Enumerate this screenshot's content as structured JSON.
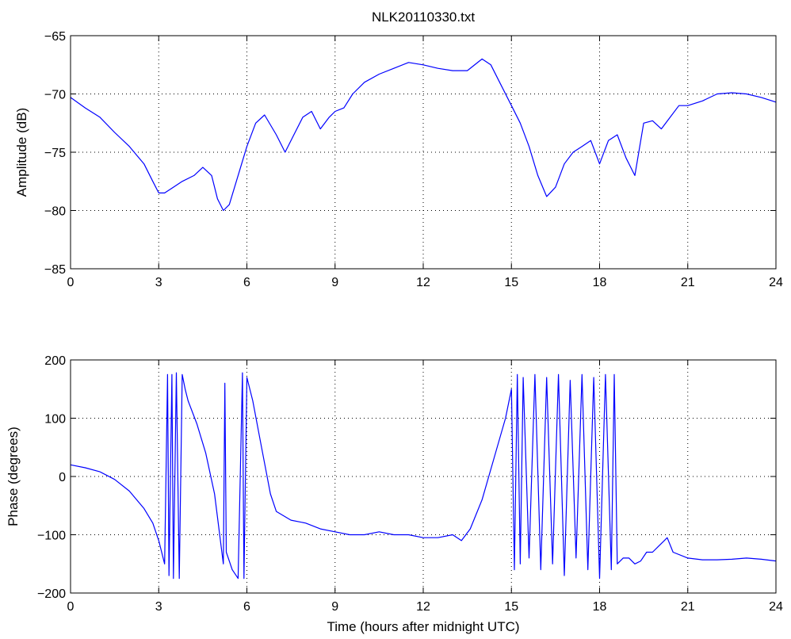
{
  "chart_data": [
    {
      "type": "line",
      "title": "NLK20110330.txt",
      "xlabel": "",
      "ylabel": "Amplitude (dB)",
      "xlim": [
        0,
        24
      ],
      "ylim": [
        -85,
        -65
      ],
      "xticks": [
        0,
        3,
        6,
        9,
        12,
        15,
        18,
        21,
        24
      ],
      "yticks": [
        -85,
        -80,
        -75,
        -70,
        -65
      ],
      "xtick_labels": [
        "0",
        "3",
        "6",
        "9",
        "12",
        "15",
        "18",
        "21",
        "24"
      ],
      "ytick_labels": [
        "−85",
        "−80",
        "−75",
        "−70",
        "−65"
      ],
      "grid": true,
      "color": "#0000ff",
      "series": [
        {
          "x": [
            0,
            0.5,
            1,
            1.5,
            2,
            2.5,
            2.8,
            3.0,
            3.2,
            3.5,
            3.8,
            4.2,
            4.5,
            4.8,
            5.0,
            5.2,
            5.4,
            5.7,
            6.0,
            6.3,
            6.6,
            7.0,
            7.3,
            7.6,
            7.9,
            8.2,
            8.5,
            8.8,
            9.0,
            9.3,
            9.6,
            10.0,
            10.5,
            11.0,
            11.5,
            12.0,
            12.5,
            13.0,
            13.5,
            14.0,
            14.3,
            14.6,
            15.0,
            15.3,
            15.6,
            15.9,
            16.2,
            16.5,
            16.8,
            17.1,
            17.4,
            17.7,
            18.0,
            18.3,
            18.6,
            18.9,
            19.2,
            19.5,
            19.8,
            20.1,
            20.4,
            20.7,
            21.0,
            21.5,
            22.0,
            22.5,
            23.0,
            23.5,
            24.0
          ],
          "y": [
            -70.3,
            -71.2,
            -72.0,
            -73.3,
            -74.5,
            -76.0,
            -77.5,
            -78.5,
            -78.5,
            -78.0,
            -77.5,
            -77.0,
            -76.3,
            -77.0,
            -79.0,
            -80.0,
            -79.5,
            -77.0,
            -74.5,
            -72.5,
            -71.8,
            -73.5,
            -75.0,
            -73.5,
            -72.0,
            -71.5,
            -73.0,
            -72.0,
            -71.5,
            -71.2,
            -70.0,
            -69.0,
            -68.3,
            -67.8,
            -67.3,
            -67.5,
            -67.8,
            -68.0,
            -68.0,
            -67.0,
            -67.5,
            -69.0,
            -71.0,
            -72.5,
            -74.5,
            -77.0,
            -78.8,
            -78.0,
            -76.0,
            -75.0,
            -74.5,
            -74.0,
            -76.0,
            -74.0,
            -73.5,
            -75.5,
            -77.0,
            -72.5,
            -72.3,
            -73.0,
            -72.0,
            -71.0,
            -71.0,
            -70.6,
            -70.0,
            -69.9,
            -70.0,
            -70.3,
            -70.7
          ]
        }
      ]
    },
    {
      "type": "line",
      "title": "",
      "xlabel": "Time (hours after midnight UTC)",
      "ylabel": "Phase (degrees)",
      "xlim": [
        0,
        24
      ],
      "ylim": [
        -200,
        200
      ],
      "xticks": [
        0,
        3,
        6,
        9,
        12,
        15,
        18,
        21,
        24
      ],
      "yticks": [
        -200,
        -100,
        0,
        100,
        200
      ],
      "xtick_labels": [
        "0",
        "3",
        "6",
        "9",
        "12",
        "15",
        "18",
        "21",
        "24"
      ],
      "ytick_labels": [
        "−200",
        "−100",
        "0",
        "100",
        "200"
      ],
      "grid": true,
      "color": "#0000ff",
      "series": [
        {
          "x": [
            0,
            0.5,
            1,
            1.5,
            2,
            2.5,
            2.8,
            3.0,
            3.2,
            3.3,
            3.35,
            3.45,
            3.5,
            3.6,
            3.7,
            3.8,
            3.9,
            4.0,
            4.3,
            4.6,
            4.9,
            5.2,
            5.25,
            5.3,
            5.5,
            5.7,
            5.85,
            5.9,
            6.0,
            6.2,
            6.5,
            6.8,
            7.0,
            7.5,
            8.0,
            8.5,
            9.0,
            9.5,
            10.0,
            10.5,
            11.0,
            11.5,
            12.0,
            12.5,
            13.0,
            13.3,
            13.6,
            14.0,
            14.4,
            14.8,
            15.0,
            15.1,
            15.2,
            15.3,
            15.4,
            15.6,
            15.8,
            16.0,
            16.2,
            16.4,
            16.6,
            16.8,
            17.0,
            17.2,
            17.4,
            17.6,
            17.8,
            18.0,
            18.2,
            18.4,
            18.5,
            18.6,
            18.8,
            19.0,
            19.2,
            19.4,
            19.6,
            19.8,
            20.0,
            20.2,
            20.3,
            20.5,
            21.0,
            21.5,
            22.0,
            22.5,
            23.0,
            23.5,
            24.0
          ],
          "y": [
            20,
            15,
            8,
            -5,
            -25,
            -55,
            -80,
            -110,
            -150,
            175,
            -170,
            175,
            -175,
            178,
            -175,
            175,
            150,
            130,
            90,
            40,
            -30,
            -150,
            160,
            -130,
            -160,
            -175,
            178,
            -175,
            170,
            130,
            50,
            -30,
            -60,
            -75,
            -80,
            -90,
            -95,
            -100,
            -100,
            -95,
            -100,
            -100,
            -105,
            -105,
            -100,
            -110,
            -90,
            -40,
            30,
            100,
            150,
            -160,
            175,
            -150,
            170,
            -140,
            175,
            -160,
            170,
            -150,
            175,
            -170,
            165,
            -140,
            175,
            -160,
            170,
            -175,
            175,
            -160,
            175,
            -150,
            -140,
            -140,
            -150,
            -145,
            -130,
            -130,
            -120,
            -110,
            -105,
            -130,
            -140,
            -143,
            -143,
            -142,
            -140,
            -142,
            -145
          ]
        }
      ]
    }
  ]
}
